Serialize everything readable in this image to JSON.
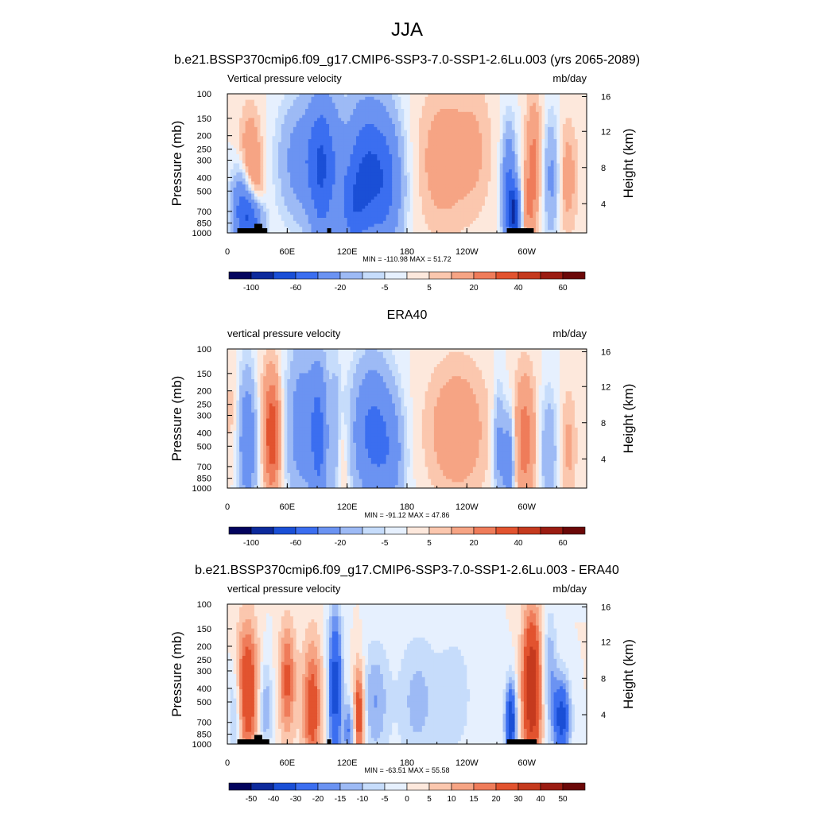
{
  "figure": {
    "title": "JJA"
  },
  "chart_data": [
    {
      "type": "heatmap",
      "title": "b.e21.BSSP370cmip6.f09_g17.CMIP6-SSP3-7.0-SSP1-2.6Lu.003 (yrs 2065-2089)",
      "left_label": "Vertical pressure velocity",
      "right_label": "mb/day",
      "ylabel": "Pressure (mb)",
      "ylabel_right": "Height (km)",
      "x_ticks": [
        "0",
        "60E",
        "120E",
        "180",
        "120W",
        "60W"
      ],
      "y_ticks": [
        "100",
        "150",
        "200",
        "250",
        "300",
        "400",
        "500",
        "700",
        "850",
        "1000"
      ],
      "y_right_ticks": [
        "16",
        "12",
        "8",
        "4"
      ],
      "stats": "MIN = -110.98  MAX =  51.72",
      "colorbar_labels": [
        "-100",
        "-60",
        "-20",
        "-5",
        "5",
        "20",
        "40",
        "60"
      ],
      "colorbar_colors": [
        "#03045e",
        "#0d2a9c",
        "#1a4fd6",
        "#3b6ef0",
        "#6b93f2",
        "#9dbaf5",
        "#c6dcfb",
        "#e6f0fe",
        "#fde8dc",
        "#fbc7ae",
        "#f6a484",
        "#ef7c5a",
        "#e2532f",
        "#c53a1e",
        "#9b1c12",
        "#6b0808"
      ],
      "ylim": [
        1000,
        100
      ],
      "features": [
        {
          "x": 23,
          "p": 330,
          "v": 22,
          "w": 8,
          "h": 0.28
        },
        {
          "x": 14,
          "p": 650,
          "v": -40,
          "w": 7,
          "h": 0.2
        },
        {
          "x": 25,
          "p": 780,
          "v": -55,
          "w": 8,
          "h": 0.14
        },
        {
          "x": 30,
          "p": 560,
          "v": 14,
          "w": 6,
          "h": 0.14
        },
        {
          "x": 75,
          "p": 300,
          "v": -30,
          "w": 16,
          "h": 0.3
        },
        {
          "x": 95,
          "p": 350,
          "v": -50,
          "w": 9,
          "h": 0.4
        },
        {
          "x": 110,
          "p": 250,
          "v": -10,
          "w": 6,
          "h": 0.3
        },
        {
          "x": 138,
          "p": 350,
          "v": -55,
          "w": 15,
          "h": 0.35
        },
        {
          "x": 160,
          "p": 450,
          "v": -35,
          "w": 12,
          "h": 0.35
        },
        {
          "x": 125,
          "p": 700,
          "v": -30,
          "w": 10,
          "h": 0.2
        },
        {
          "x": 215,
          "p": 300,
          "v": 15,
          "w": 18,
          "h": 0.38
        },
        {
          "x": 248,
          "p": 250,
          "v": 10,
          "w": 14,
          "h": 0.35
        },
        {
          "x": 282,
          "p": 500,
          "v": -45,
          "w": 5,
          "h": 0.3
        },
        {
          "x": 288,
          "p": 750,
          "v": -70,
          "w": 4,
          "h": 0.15
        },
        {
          "x": 307,
          "p": 280,
          "v": 22,
          "w": 6,
          "h": 0.3
        },
        {
          "x": 302,
          "p": 700,
          "v": 15,
          "w": 5,
          "h": 0.2
        },
        {
          "x": 325,
          "p": 400,
          "v": -25,
          "w": 6,
          "h": 0.3
        },
        {
          "x": 340,
          "p": 400,
          "v": 15,
          "w": 8,
          "h": 0.3
        }
      ],
      "topography": [
        {
          "x0": 10,
          "x1": 40,
          "top": 925
        },
        {
          "x0": 27,
          "x1": 35,
          "top": 860
        },
        {
          "x0": 100,
          "x1": 104,
          "top": 925
        },
        {
          "x0": 280,
          "x1": 307,
          "top": 925
        }
      ]
    },
    {
      "type": "heatmap",
      "title": "ERA40",
      "left_label": "vertical pressure velocity",
      "right_label": "mb/day",
      "ylabel": "Pressure (mb)",
      "ylabel_right": "Height (km)",
      "x_ticks": [
        "0",
        "60E",
        "120E",
        "180",
        "120W",
        "60W"
      ],
      "y_ticks": [
        "100",
        "150",
        "200",
        "250",
        "300",
        "400",
        "500",
        "700",
        "850",
        "1000"
      ],
      "y_right_ticks": [
        "16",
        "12",
        "8",
        "4"
      ],
      "stats": "MIN = -91.12  MAX =  47.86",
      "colorbar_labels": [
        "-100",
        "-60",
        "-20",
        "-5",
        "5",
        "20",
        "40",
        "60"
      ],
      "colorbar_colors": [
        "#03045e",
        "#0d2a9c",
        "#1a4fd6",
        "#3b6ef0",
        "#6b93f2",
        "#9dbaf5",
        "#c6dcfb",
        "#e6f0fe",
        "#fde8dc",
        "#fbc7ae",
        "#f6a484",
        "#ef7c5a",
        "#e2532f",
        "#c53a1e",
        "#9b1c12",
        "#6b0808"
      ],
      "ylim": [
        1000,
        100
      ],
      "features": [
        {
          "x": 5,
          "p": 300,
          "v": 8,
          "w": 6,
          "h": 0.3
        },
        {
          "x": 20,
          "p": 450,
          "v": -35,
          "w": 7,
          "h": 0.35
        },
        {
          "x": 45,
          "p": 450,
          "v": 35,
          "w": 6,
          "h": 0.3
        },
        {
          "x": 42,
          "p": 250,
          "v": 8,
          "w": 10,
          "h": 0.3
        },
        {
          "x": 75,
          "p": 350,
          "v": -30,
          "w": 12,
          "h": 0.4
        },
        {
          "x": 92,
          "p": 450,
          "v": -40,
          "w": 6,
          "h": 0.4
        },
        {
          "x": 108,
          "p": 400,
          "v": -15,
          "w": 4,
          "h": 0.4
        },
        {
          "x": 115,
          "p": 650,
          "v": 10,
          "w": 4,
          "h": 0.2
        },
        {
          "x": 145,
          "p": 400,
          "v": -45,
          "w": 14,
          "h": 0.35
        },
        {
          "x": 165,
          "p": 600,
          "v": -20,
          "w": 10,
          "h": 0.3
        },
        {
          "x": 230,
          "p": 380,
          "v": 18,
          "w": 22,
          "h": 0.35
        },
        {
          "x": 272,
          "p": 500,
          "v": -25,
          "w": 4,
          "h": 0.3
        },
        {
          "x": 282,
          "p": 650,
          "v": -35,
          "w": 4,
          "h": 0.25
        },
        {
          "x": 298,
          "p": 450,
          "v": 25,
          "w": 8,
          "h": 0.35
        },
        {
          "x": 322,
          "p": 550,
          "v": -20,
          "w": 6,
          "h": 0.3
        },
        {
          "x": 342,
          "p": 500,
          "v": 12,
          "w": 6,
          "h": 0.3
        }
      ],
      "topography": []
    },
    {
      "type": "heatmap",
      "title": "b.e21.BSSP370cmip6.f09_g17.CMIP6-SSP3-7.0-SSP1-2.6Lu.003 - ERA40",
      "left_label": "vertical pressure velocity",
      "right_label": "mb/day",
      "ylabel": "Pressure (mb)",
      "ylabel_right": "Height (km)",
      "x_ticks": [
        "0",
        "60E",
        "120E",
        "180",
        "120W",
        "60W"
      ],
      "y_ticks": [
        "100",
        "150",
        "200",
        "250",
        "300",
        "400",
        "500",
        "700",
        "850",
        "1000"
      ],
      "y_right_ticks": [
        "16",
        "12",
        "8",
        "4"
      ],
      "stats": "MIN = -63.51  MAX =  55.58",
      "colorbar_labels": [
        "-50",
        "-40",
        "-30",
        "-20",
        "-15",
        "-10",
        "-5",
        "0",
        "5",
        "10",
        "15",
        "20",
        "30",
        "40",
        "50"
      ],
      "colorbar_colors": [
        "#03045e",
        "#0d2a9c",
        "#1a4fd6",
        "#3b6ef0",
        "#6b93f2",
        "#9dbaf5",
        "#c6dcfb",
        "#e6f0fe",
        "#fde8dc",
        "#fbc7ae",
        "#f6a484",
        "#ef7c5a",
        "#e2532f",
        "#c53a1e",
        "#9b1c12",
        "#6b0808"
      ],
      "ylim": [
        1000,
        100
      ],
      "features": [
        {
          "x": 20,
          "p": 420,
          "v": 30,
          "w": 8,
          "h": 0.35
        },
        {
          "x": 8,
          "p": 600,
          "v": -15,
          "w": 5,
          "h": 0.25
        },
        {
          "x": 38,
          "p": 550,
          "v": -15,
          "w": 5,
          "h": 0.25
        },
        {
          "x": 60,
          "p": 350,
          "v": 22,
          "w": 6,
          "h": 0.3
        },
        {
          "x": 85,
          "p": 550,
          "v": 25,
          "w": 7,
          "h": 0.35
        },
        {
          "x": 108,
          "p": 400,
          "v": -35,
          "w": 5,
          "h": 0.4
        },
        {
          "x": 132,
          "p": 600,
          "v": 30,
          "w": 4,
          "h": 0.25
        },
        {
          "x": 122,
          "p": 800,
          "v": -20,
          "w": 4,
          "h": 0.15
        },
        {
          "x": 148,
          "p": 500,
          "v": -15,
          "w": 10,
          "h": 0.3
        },
        {
          "x": 190,
          "p": 500,
          "v": -12,
          "w": 14,
          "h": 0.35
        },
        {
          "x": 228,
          "p": 450,
          "v": -8,
          "w": 14,
          "h": 0.35
        },
        {
          "x": 284,
          "p": 700,
          "v": -40,
          "w": 4,
          "h": 0.2
        },
        {
          "x": 305,
          "p": 400,
          "v": 40,
          "w": 7,
          "h": 0.4
        },
        {
          "x": 323,
          "p": 300,
          "v": -15,
          "w": 5,
          "h": 0.3
        },
        {
          "x": 335,
          "p": 650,
          "v": -35,
          "w": 6,
          "h": 0.2
        }
      ],
      "topography": [
        {
          "x0": 10,
          "x1": 42,
          "top": 925
        },
        {
          "x0": 27,
          "x1": 35,
          "top": 860
        },
        {
          "x0": 100,
          "x1": 104,
          "top": 925
        },
        {
          "x0": 280,
          "x1": 310,
          "top": 925
        }
      ]
    }
  ]
}
